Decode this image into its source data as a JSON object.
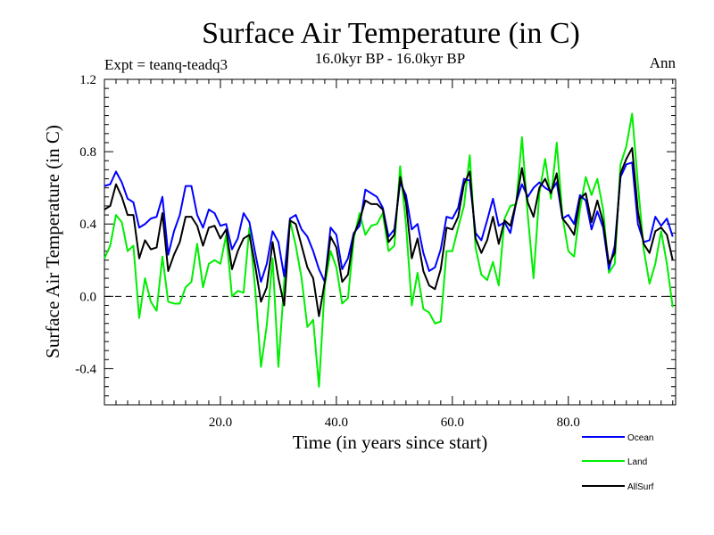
{
  "chart_data": {
    "type": "line",
    "title": "Surface Air Temperature (in C)",
    "subtitle": "16.0kyr BP - 16.0kyr BP",
    "expt_label": "Expt = teanq-teadq3",
    "period_label": "Ann",
    "xlabel": "Time (in years since start)",
    "ylabel": "Surface Air Temperature (in C)",
    "xlim": [
      0,
      98.5
    ],
    "ylim": [
      -0.6,
      1.2
    ],
    "xticks": [
      20,
      40,
      60,
      80
    ],
    "xtick_labels": [
      "20.0",
      "40.0",
      "60.0",
      "80.0"
    ],
    "yticks": [
      -0.4,
      0.0,
      0.4,
      0.8,
      1.2
    ],
    "ytick_labels": [
      "-0.4",
      "0.0",
      "0.4",
      "0.8",
      "1.2"
    ],
    "reference_line": 0.0,
    "x_start": 0,
    "series": [
      {
        "name": "Ocean",
        "color": "#0000ff",
        "values": [
          0.61,
          0.62,
          0.69,
          0.63,
          0.54,
          0.52,
          0.38,
          0.4,
          0.43,
          0.44,
          0.55,
          0.23,
          0.36,
          0.45,
          0.61,
          0.61,
          0.45,
          0.38,
          0.48,
          0.46,
          0.39,
          0.4,
          0.26,
          0.32,
          0.46,
          0.41,
          0.24,
          0.08,
          0.18,
          0.36,
          0.3,
          0.11,
          0.43,
          0.45,
          0.37,
          0.33,
          0.25,
          0.15,
          0.08,
          0.38,
          0.34,
          0.15,
          0.21,
          0.35,
          0.39,
          0.59,
          0.57,
          0.55,
          0.49,
          0.33,
          0.37,
          0.63,
          0.56,
          0.37,
          0.4,
          0.24,
          0.14,
          0.16,
          0.26,
          0.44,
          0.43,
          0.49,
          0.65,
          0.64,
          0.35,
          0.31,
          0.42,
          0.54,
          0.39,
          0.41,
          0.35,
          0.52,
          0.62,
          0.55,
          0.6,
          0.63,
          0.6,
          0.58,
          0.63,
          0.43,
          0.45,
          0.4,
          0.56,
          0.53,
          0.37,
          0.47,
          0.38,
          0.15,
          0.28,
          0.66,
          0.73,
          0.74,
          0.4,
          0.3,
          0.31,
          0.44,
          0.39,
          0.43,
          0.33
        ]
      },
      {
        "name": "Land",
        "color": "#00ee00",
        "values": [
          0.21,
          0.28,
          0.45,
          0.41,
          0.25,
          0.28,
          -0.12,
          0.1,
          -0.03,
          -0.08,
          0.22,
          -0.03,
          -0.04,
          -0.04,
          0.05,
          0.08,
          0.29,
          0.05,
          0.18,
          0.2,
          0.18,
          0.34,
          0.0,
          0.03,
          0.02,
          0.38,
          0.04,
          -0.39,
          -0.16,
          0.21,
          -0.39,
          0.08,
          0.42,
          0.28,
          0.1,
          -0.17,
          -0.13,
          -0.5,
          0.06,
          0.25,
          0.16,
          -0.04,
          -0.01,
          0.32,
          0.46,
          0.34,
          0.39,
          0.4,
          0.46,
          0.25,
          0.28,
          0.72,
          0.4,
          -0.05,
          0.13,
          -0.07,
          -0.09,
          -0.15,
          -0.14,
          0.25,
          0.25,
          0.38,
          0.5,
          0.78,
          0.27,
          0.12,
          0.09,
          0.19,
          0.06,
          0.43,
          0.5,
          0.51,
          0.88,
          0.45,
          0.1,
          0.57,
          0.76,
          0.54,
          0.85,
          0.44,
          0.25,
          0.22,
          0.48,
          0.66,
          0.56,
          0.65,
          0.48,
          0.13,
          0.18,
          0.73,
          0.83,
          1.01,
          0.62,
          0.26,
          0.07,
          0.18,
          0.36,
          0.18,
          -0.06
        ]
      },
      {
        "name": "AllSurf",
        "color": "#000000",
        "values": [
          0.48,
          0.5,
          0.62,
          0.55,
          0.45,
          0.45,
          0.21,
          0.31,
          0.26,
          0.27,
          0.46,
          0.14,
          0.23,
          0.3,
          0.44,
          0.44,
          0.39,
          0.28,
          0.38,
          0.39,
          0.32,
          0.37,
          0.15,
          0.25,
          0.32,
          0.34,
          0.17,
          -0.03,
          0.05,
          0.3,
          0.1,
          -0.05,
          0.42,
          0.4,
          0.28,
          0.16,
          0.1,
          -0.11,
          0.08,
          0.33,
          0.27,
          0.08,
          0.12,
          0.34,
          0.42,
          0.53,
          0.51,
          0.51,
          0.48,
          0.3,
          0.34,
          0.66,
          0.52,
          0.21,
          0.32,
          0.14,
          0.06,
          0.04,
          0.15,
          0.38,
          0.37,
          0.44,
          0.62,
          0.69,
          0.32,
          0.24,
          0.31,
          0.44,
          0.29,
          0.42,
          0.39,
          0.52,
          0.71,
          0.52,
          0.44,
          0.6,
          0.65,
          0.57,
          0.68,
          0.43,
          0.39,
          0.34,
          0.54,
          0.57,
          0.41,
          0.53,
          0.41,
          0.18,
          0.24,
          0.68,
          0.76,
          0.82,
          0.47,
          0.29,
          0.24,
          0.36,
          0.38,
          0.34,
          0.2
        ]
      }
    ]
  }
}
